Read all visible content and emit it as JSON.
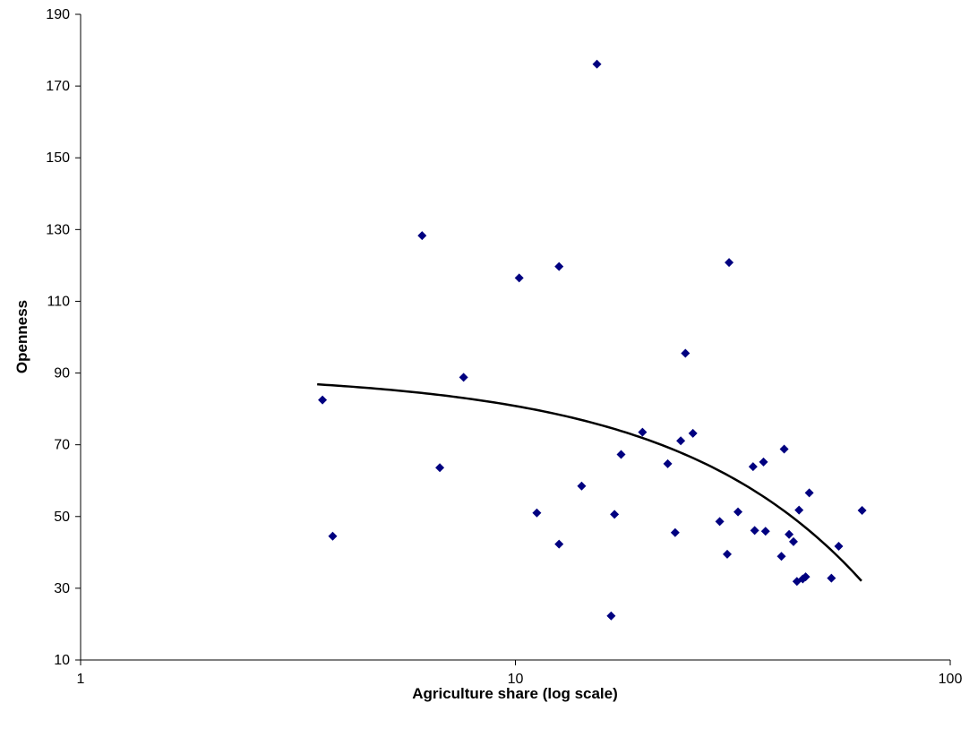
{
  "chart_data": {
    "type": "scatter",
    "xlabel": "Agriculture share (log scale)",
    "ylabel": "Openness",
    "x_scale": "log",
    "xlim": [
      1,
      100
    ],
    "ylim": [
      10,
      190
    ],
    "x_ticks": [
      1,
      10,
      100
    ],
    "x_tick_labels": [
      "1",
      "10",
      "100"
    ],
    "y_ticks": [
      10,
      30,
      50,
      70,
      90,
      110,
      130,
      150,
      170,
      190
    ],
    "y_tick_labels": [
      "10",
      "30",
      "50",
      "70",
      "90",
      "110",
      "130",
      "150",
      "170",
      "190"
    ],
    "grid": false,
    "legend": "none",
    "colors": {
      "marker": "#000080",
      "trendline": "#000000",
      "axis": "#000000"
    },
    "marker_shape": "diamond",
    "series": [
      {
        "points": [
          [
            3.6,
            82.5
          ],
          [
            3.8,
            44.5
          ],
          [
            6.1,
            128.3
          ],
          [
            6.7,
            63.6
          ],
          [
            7.6,
            88.8
          ],
          [
            10.2,
            116.5
          ],
          [
            11.2,
            51.0
          ],
          [
            12.6,
            119.7
          ],
          [
            12.6,
            42.3
          ],
          [
            14.2,
            58.5
          ],
          [
            15.4,
            176.1
          ],
          [
            16.6,
            22.3
          ],
          [
            16.9,
            50.6
          ],
          [
            17.5,
            67.3
          ],
          [
            19.6,
            73.5
          ],
          [
            22.4,
            64.7
          ],
          [
            23.3,
            45.5
          ],
          [
            24.0,
            71.1
          ],
          [
            24.6,
            95.5
          ],
          [
            25.6,
            73.2
          ],
          [
            29.5,
            48.6
          ],
          [
            30.7,
            39.5
          ],
          [
            31.0,
            120.8
          ],
          [
            32.5,
            51.3
          ],
          [
            35.2,
            63.9
          ],
          [
            35.5,
            46.1
          ],
          [
            37.2,
            65.2
          ],
          [
            37.6,
            45.9
          ],
          [
            40.9,
            38.9
          ],
          [
            41.5,
            68.8
          ],
          [
            42.6,
            45.0
          ],
          [
            43.6,
            43.0
          ],
          [
            44.4,
            31.9
          ],
          [
            44.9,
            51.8
          ],
          [
            45.8,
            32.6
          ],
          [
            46.5,
            33.2
          ],
          [
            47.4,
            56.6
          ],
          [
            53.3,
            32.8
          ],
          [
            55.4,
            41.7
          ],
          [
            62.7,
            51.7
          ]
        ]
      }
    ],
    "trendline": {
      "type": "linear-in-x",
      "x_range": [
        3.5,
        62.5
      ],
      "intercept": 90.1,
      "slope": -0.929
    }
  }
}
